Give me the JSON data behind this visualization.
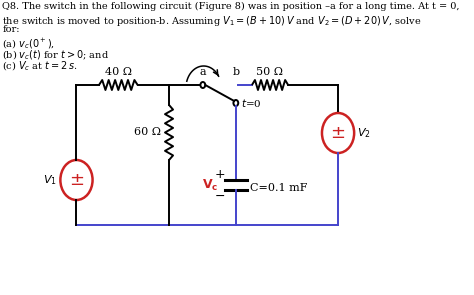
{
  "bg_color": "#ffffff",
  "text_color": "#000000",
  "circuit_color": "#000000",
  "blue_color": "#4444cc",
  "source_color": "#cc2222",
  "vc_color": "#cc2222",
  "R1_label": "40 Ω",
  "R2_label": "60 Ω",
  "R3_label": "50 Ω",
  "C_label": "C=0.1 mF",
  "Vc_label": "V_c",
  "switch_a": "a",
  "switch_b": "b",
  "t0_label": "t=0",
  "V1_label": "V_1",
  "V2_label": "V_2",
  "line1": "Q8. The switch in the following circuit (Figure 8) was in position –a for a long time. At t = 0,",
  "line2a": "the switch is moved to position-b. Assuming ",
  "line2b": " and ",
  "line2c": ", solve",
  "line3": "for:",
  "item_a": "(a) ",
  "item_b": "(b) ",
  "item_c": "(c) "
}
